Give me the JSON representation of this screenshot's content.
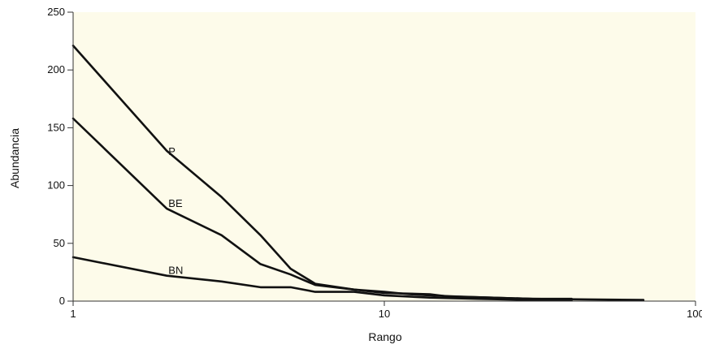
{
  "chart_data": {
    "type": "line",
    "title": "",
    "xlabel": "Rango",
    "ylabel": "Abundancia",
    "x_scale": "log",
    "xlim": [
      1,
      100
    ],
    "ylim": [
      0,
      250
    ],
    "x_ticks": [
      1,
      10,
      100
    ],
    "x_tick_labels": [
      "1",
      "10",
      "100"
    ],
    "y_ticks": [
      0,
      50,
      100,
      150,
      200,
      250
    ],
    "y_tick_labels": [
      "0",
      "50",
      "100",
      "150",
      "200",
      "250"
    ],
    "grid": false,
    "legend": "none",
    "plot_background": "#fdfbea",
    "line_color": "#111111",
    "series": [
      {
        "name": "P",
        "label_at": [
          2,
          130
        ],
        "points": [
          [
            1,
            221
          ],
          [
            2,
            130
          ],
          [
            3,
            90
          ],
          [
            4,
            57
          ],
          [
            5,
            28
          ],
          [
            6,
            15
          ],
          [
            8,
            10
          ],
          [
            10,
            8
          ],
          [
            12,
            6
          ],
          [
            14,
            5
          ],
          [
            17,
            4
          ],
          [
            22,
            3
          ],
          [
            30,
            2
          ],
          [
            45,
            1.5
          ],
          [
            68,
            1
          ]
        ]
      },
      {
        "name": "BE",
        "label_at": [
          2,
          85
        ],
        "points": [
          [
            1,
            158
          ],
          [
            2,
            80
          ],
          [
            3,
            57
          ],
          [
            4,
            32
          ],
          [
            5,
            23
          ],
          [
            6,
            14
          ],
          [
            8,
            10
          ],
          [
            10,
            7
          ],
          [
            14,
            6
          ],
          [
            16,
            4
          ],
          [
            22,
            3
          ],
          [
            30,
            2
          ],
          [
            40,
            2
          ]
        ]
      },
      {
        "name": "BN",
        "label_at": [
          2,
          27
        ],
        "points": [
          [
            1,
            38
          ],
          [
            2,
            22
          ],
          [
            3,
            17
          ],
          [
            4,
            12
          ],
          [
            5,
            12
          ],
          [
            6,
            8
          ],
          [
            8,
            8
          ],
          [
            10,
            5
          ],
          [
            14,
            3
          ],
          [
            20,
            2
          ],
          [
            30,
            1
          ],
          [
            40,
            1
          ]
        ]
      }
    ]
  }
}
